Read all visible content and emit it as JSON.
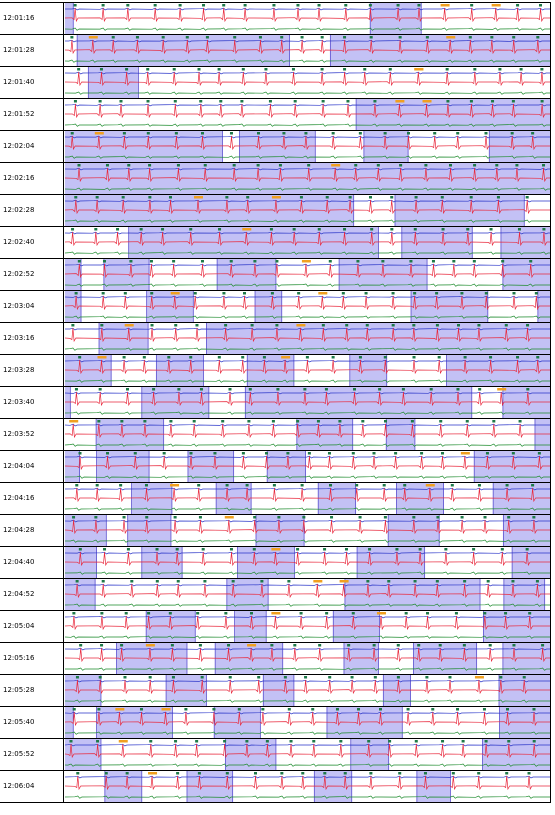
{
  "rows": [
    {
      "time": "12:01:16",
      "shaded": [
        [
          0.0,
          0.017
        ],
        [
          0.628,
          0.733
        ]
      ]
    },
    {
      "time": "12:01:28",
      "shaded": [
        [
          0.025,
          0.462
        ],
        [
          0.546,
          1.0
        ]
      ]
    },
    {
      "time": "12:01:40",
      "shaded": [
        [
          0.048,
          0.151
        ]
      ]
    },
    {
      "time": "12:01:52",
      "shaded": [
        [
          0.599,
          1.0
        ]
      ]
    },
    {
      "time": "12:02:04",
      "shaded": [
        [
          0.0,
          0.324
        ],
        [
          0.359,
          0.515
        ],
        [
          0.615,
          0.706
        ],
        [
          0.873,
          1.0
        ]
      ]
    },
    {
      "time": "12:02:16",
      "shaded": [
        [
          0.0,
          1.0
        ]
      ]
    },
    {
      "time": "12:02:28",
      "shaded": [
        [
          0.0,
          0.594
        ],
        [
          0.679,
          0.945
        ]
      ]
    },
    {
      "time": "12:02:40",
      "shaded": [
        [
          0.131,
          0.645
        ],
        [
          0.693,
          0.838
        ],
        [
          0.897,
          1.0
        ]
      ]
    },
    {
      "time": "12:02:52",
      "shaded": [
        [
          0.0,
          0.033
        ],
        [
          0.08,
          0.173
        ],
        [
          0.313,
          0.434
        ],
        [
          0.564,
          0.745
        ],
        [
          0.901,
          1.0
        ]
      ]
    },
    {
      "time": "12:03:04",
      "shaded": [
        [
          0.0,
          0.033
        ],
        [
          0.168,
          0.264
        ],
        [
          0.391,
          0.446
        ],
        [
          0.712,
          0.87
        ],
        [
          0.973,
          1.0
        ]
      ]
    },
    {
      "time": "12:03:16",
      "shaded": [
        [
          0.07,
          0.171
        ],
        [
          0.291,
          1.0
        ]
      ]
    },
    {
      "time": "12:03:28",
      "shaded": [
        [
          0.0,
          0.095
        ],
        [
          0.188,
          0.285
        ],
        [
          0.375,
          0.471
        ],
        [
          0.586,
          0.662
        ],
        [
          0.785,
          1.0
        ]
      ]
    },
    {
      "time": "12:03:40",
      "shaded": [
        [
          0.0,
          0.011
        ],
        [
          0.158,
          0.296
        ],
        [
          0.371,
          0.837
        ],
        [
          0.901,
          1.0
        ]
      ]
    },
    {
      "time": "12:03:52",
      "shaded": [
        [
          0.064,
          0.203
        ],
        [
          0.477,
          0.592
        ],
        [
          0.661,
          0.72
        ],
        [
          0.967,
          1.0
        ]
      ]
    },
    {
      "time": "12:04:04",
      "shaded": [
        [
          0.0,
          0.03
        ],
        [
          0.065,
          0.173
        ],
        [
          0.253,
          0.347
        ],
        [
          0.416,
          0.495
        ],
        [
          0.842,
          1.0
        ]
      ]
    },
    {
      "time": "12:04:16",
      "shaded": [
        [
          0.137,
          0.22
        ],
        [
          0.311,
          0.383
        ],
        [
          0.521,
          0.598
        ],
        [
          0.682,
          0.779
        ],
        [
          0.881,
          1.0
        ]
      ]
    },
    {
      "time": "12:04:28",
      "shaded": [
        [
          0.0,
          0.085
        ],
        [
          0.129,
          0.218
        ],
        [
          0.393,
          0.492
        ],
        [
          0.665,
          0.77
        ],
        [
          0.902,
          1.0
        ]
      ]
    },
    {
      "time": "12:04:40",
      "shaded": [
        [
          0.0,
          0.065
        ],
        [
          0.158,
          0.241
        ],
        [
          0.355,
          0.472
        ],
        [
          0.601,
          0.74
        ],
        [
          0.92,
          1.0
        ]
      ]
    },
    {
      "time": "12:04:52",
      "shaded": [
        [
          0.0,
          0.062
        ],
        [
          0.333,
          0.418
        ],
        [
          0.576,
          0.854
        ],
        [
          0.903,
          0.987
        ]
      ]
    },
    {
      "time": "12:05:04",
      "shaded": [
        [
          0.167,
          0.268
        ],
        [
          0.349,
          0.414
        ],
        [
          0.552,
          0.647
        ],
        [
          0.861,
          1.0
        ]
      ]
    },
    {
      "time": "12:05:16",
      "shaded": [
        [
          0.106,
          0.251
        ],
        [
          0.309,
          0.448
        ],
        [
          0.574,
          0.645
        ],
        [
          0.717,
          0.847
        ],
        [
          0.901,
          1.0
        ]
      ]
    },
    {
      "time": "12:05:28",
      "shaded": [
        [
          0.0,
          0.074
        ],
        [
          0.208,
          0.291
        ],
        [
          0.408,
          0.471
        ],
        [
          0.655,
          0.711
        ],
        [
          0.893,
          1.0
        ]
      ]
    },
    {
      "time": "12:05:40",
      "shaded": [
        [
          0.0,
          0.017
        ],
        [
          0.065,
          0.221
        ],
        [
          0.307,
          0.402
        ],
        [
          0.539,
          0.694
        ],
        [
          0.894,
          1.0
        ]
      ]
    },
    {
      "time": "12:05:52",
      "shaded": [
        [
          0.0,
          0.074
        ],
        [
          0.33,
          0.434
        ],
        [
          0.588,
          0.666
        ],
        [
          0.859,
          1.0
        ]
      ]
    },
    {
      "time": "12:06:04",
      "shaded": [
        [
          0.082,
          0.158
        ],
        [
          0.251,
          0.345
        ],
        [
          0.513,
          0.59
        ],
        [
          0.724,
          0.793
        ]
      ]
    }
  ]
}
